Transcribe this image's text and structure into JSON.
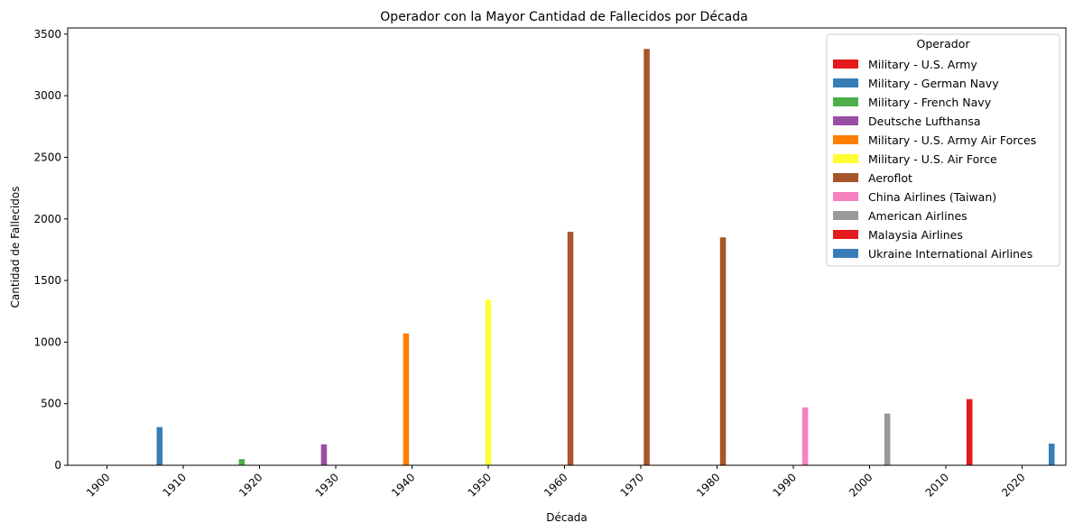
{
  "chart_data": {
    "type": "bar",
    "title": "Operador con la Mayor Cantidad de Fallecidos por Década",
    "xlabel": "Década",
    "ylabel": "Cantidad de Fallecidos",
    "categories": [
      "1900",
      "1910",
      "1920",
      "1930",
      "1940",
      "1950",
      "1960",
      "1970",
      "1980",
      "1990",
      "2000",
      "2010",
      "2020"
    ],
    "ylim": [
      0,
      3550
    ],
    "yticks": [
      0,
      500,
      1000,
      1500,
      2000,
      2500,
      3000,
      3500
    ],
    "legend_title": "Operador",
    "legend_position": "top-right",
    "grid": false,
    "series": [
      {
        "name": "Military - U.S. Army",
        "color": "#e41a1c",
        "values": [
          0,
          null,
          null,
          null,
          null,
          null,
          null,
          null,
          null,
          null,
          null,
          null,
          null
        ]
      },
      {
        "name": "Military - German Navy",
        "color": "#377eb8",
        "values": [
          null,
          310,
          null,
          null,
          null,
          null,
          null,
          null,
          null,
          null,
          null,
          null,
          null
        ]
      },
      {
        "name": "Military - French Navy",
        "color": "#4daf4a",
        "values": [
          null,
          null,
          50,
          null,
          null,
          null,
          null,
          null,
          null,
          null,
          null,
          null,
          null
        ]
      },
      {
        "name": "Deutsche Lufthansa",
        "color": "#984ea3",
        "values": [
          null,
          null,
          null,
          170,
          null,
          null,
          null,
          null,
          null,
          null,
          null,
          null,
          null
        ]
      },
      {
        "name": "Military - U.S. Army Air Forces",
        "color": "#ff7f00",
        "values": [
          null,
          null,
          null,
          null,
          1070,
          null,
          null,
          null,
          null,
          null,
          null,
          null,
          null
        ]
      },
      {
        "name": "Military - U.S. Air Force",
        "color": "#ffff33",
        "values": [
          null,
          null,
          null,
          null,
          null,
          1345,
          null,
          null,
          null,
          null,
          null,
          null,
          null
        ]
      },
      {
        "name": "Aeroflot",
        "color": "#a65628",
        "values": [
          null,
          null,
          null,
          null,
          null,
          null,
          1895,
          3380,
          1850,
          null,
          null,
          null,
          null
        ]
      },
      {
        "name": "China Airlines (Taiwan)",
        "color": "#f781bf",
        "values": [
          null,
          null,
          null,
          null,
          null,
          null,
          null,
          null,
          null,
          470,
          null,
          null,
          null
        ]
      },
      {
        "name": "American Airlines",
        "color": "#999999",
        "values": [
          null,
          null,
          null,
          null,
          null,
          null,
          null,
          null,
          null,
          null,
          420,
          null,
          null
        ]
      },
      {
        "name": "Malaysia Airlines",
        "color": "#e41a1c",
        "values": [
          null,
          null,
          null,
          null,
          null,
          null,
          null,
          null,
          null,
          null,
          null,
          537,
          null
        ]
      },
      {
        "name": "Ukraine International Airlines",
        "color": "#377eb8",
        "values": [
          null,
          null,
          null,
          null,
          null,
          null,
          null,
          null,
          null,
          null,
          null,
          null,
          176
        ]
      }
    ]
  }
}
